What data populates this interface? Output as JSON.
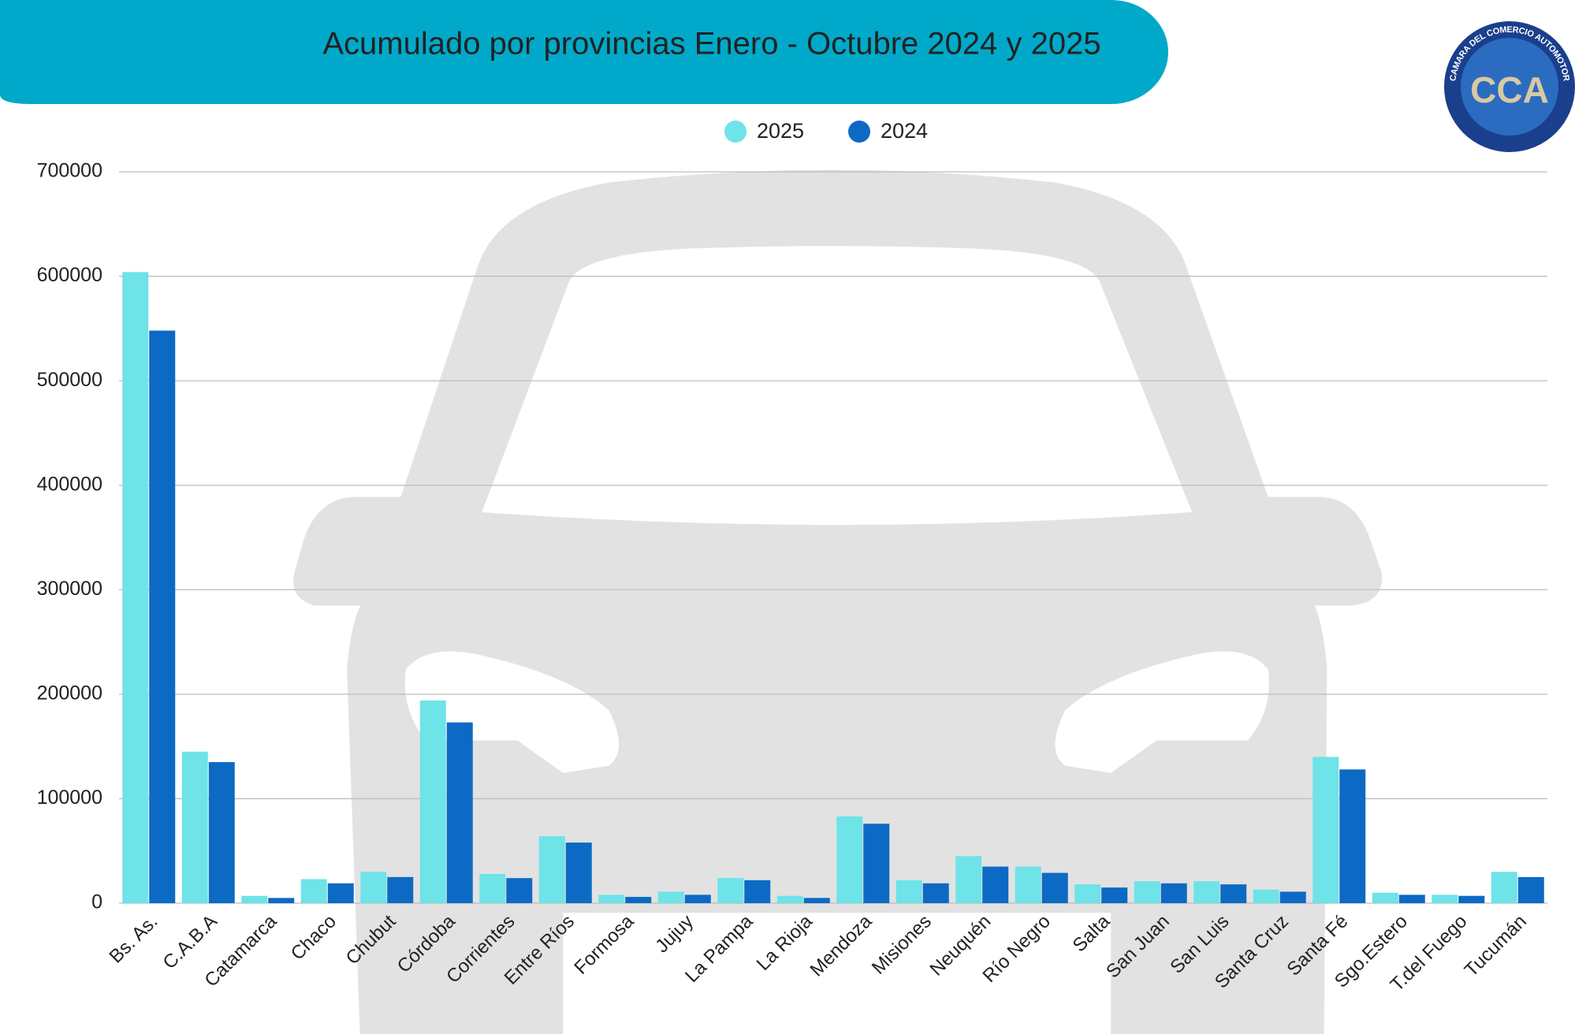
{
  "chart_data": {
    "type": "bar",
    "title": "Acumulado por provincias Enero  -  Octubre 2024 y 2025",
    "logo": {
      "initials": "CCA",
      "ring": "CAMARA DEL COMERCIO AUTOMOTOR"
    },
    "categories": [
      "Bs. As.",
      "C.A.B.A",
      "Catamarca",
      "Chaco",
      "Chubut",
      "Córdoba",
      "Corrientes",
      "Entre Ríos",
      "Formosa",
      "Jujuy",
      "La Pampa",
      "La Rioja",
      "Mendoza",
      "Misiones",
      "Neuquén",
      "Río Negro",
      "Salta",
      "San Juan",
      "San Luis",
      "Santa Cruz",
      "Santa Fé",
      "Sgo.Estero",
      "T.del Fuego",
      "Tucumán"
    ],
    "series": [
      {
        "name": "2025",
        "color": "#6ee3e8",
        "values": [
          604000,
          145000,
          7000,
          23000,
          30000,
          194000,
          28000,
          64000,
          8000,
          11000,
          24000,
          7000,
          83000,
          22000,
          45000,
          35000,
          18000,
          21000,
          21000,
          13000,
          140000,
          10000,
          8000,
          30000
        ]
      },
      {
        "name": "2024",
        "color": "#0d6ac4",
        "values": [
          548000,
          135000,
          5000,
          19000,
          25000,
          173000,
          24000,
          58000,
          6000,
          8000,
          22000,
          5000,
          76000,
          19000,
          35000,
          29000,
          15000,
          19000,
          18000,
          11000,
          128000,
          8000,
          7000,
          25000
        ]
      }
    ],
    "ylim": [
      0,
      700000
    ],
    "yticks": [
      0,
      100000,
      200000,
      300000,
      400000,
      500000,
      600000,
      700000
    ],
    "grid": true
  }
}
